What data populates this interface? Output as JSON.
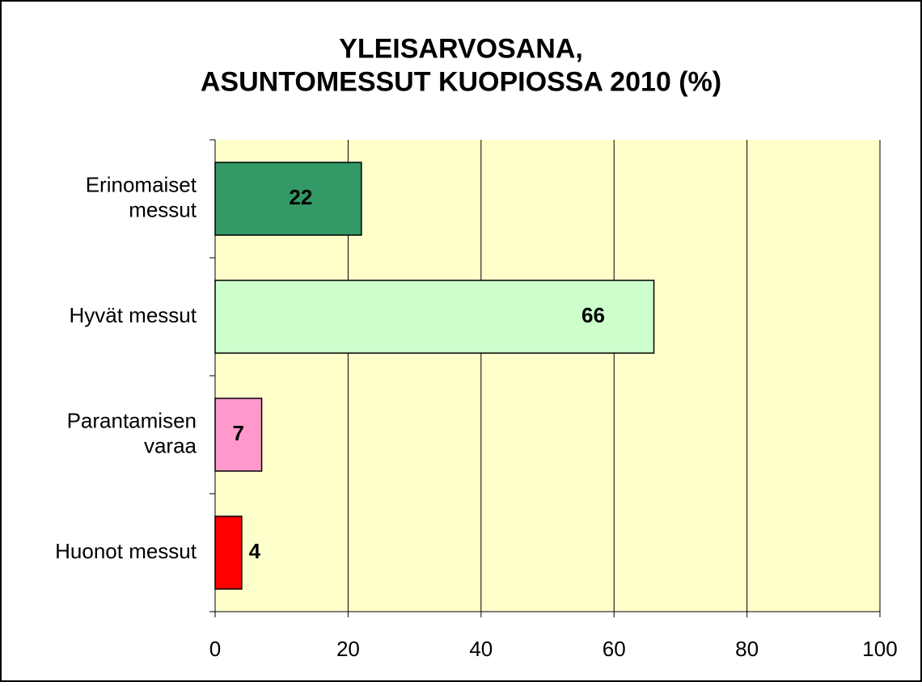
{
  "chart_data": {
    "type": "bar",
    "orientation": "horizontal",
    "title": "YLEISARVOSANA,\nASUNTOMESSUT KUOPIOSSA 2010 (%)",
    "categories": [
      "Erinomaiset\nmessut",
      "Hyvät messut",
      "Parantamisen\nvaraa",
      "Huonot messut"
    ],
    "values": [
      22,
      66,
      7,
      4
    ],
    "colors": [
      "#339966",
      "#ccffcc",
      "#ff99cc",
      "#ff0000"
    ],
    "xlim": [
      0,
      100
    ],
    "xticks": [
      0,
      20,
      40,
      60,
      80,
      100
    ],
    "grid": true,
    "plot_background": "#ffffcc"
  }
}
